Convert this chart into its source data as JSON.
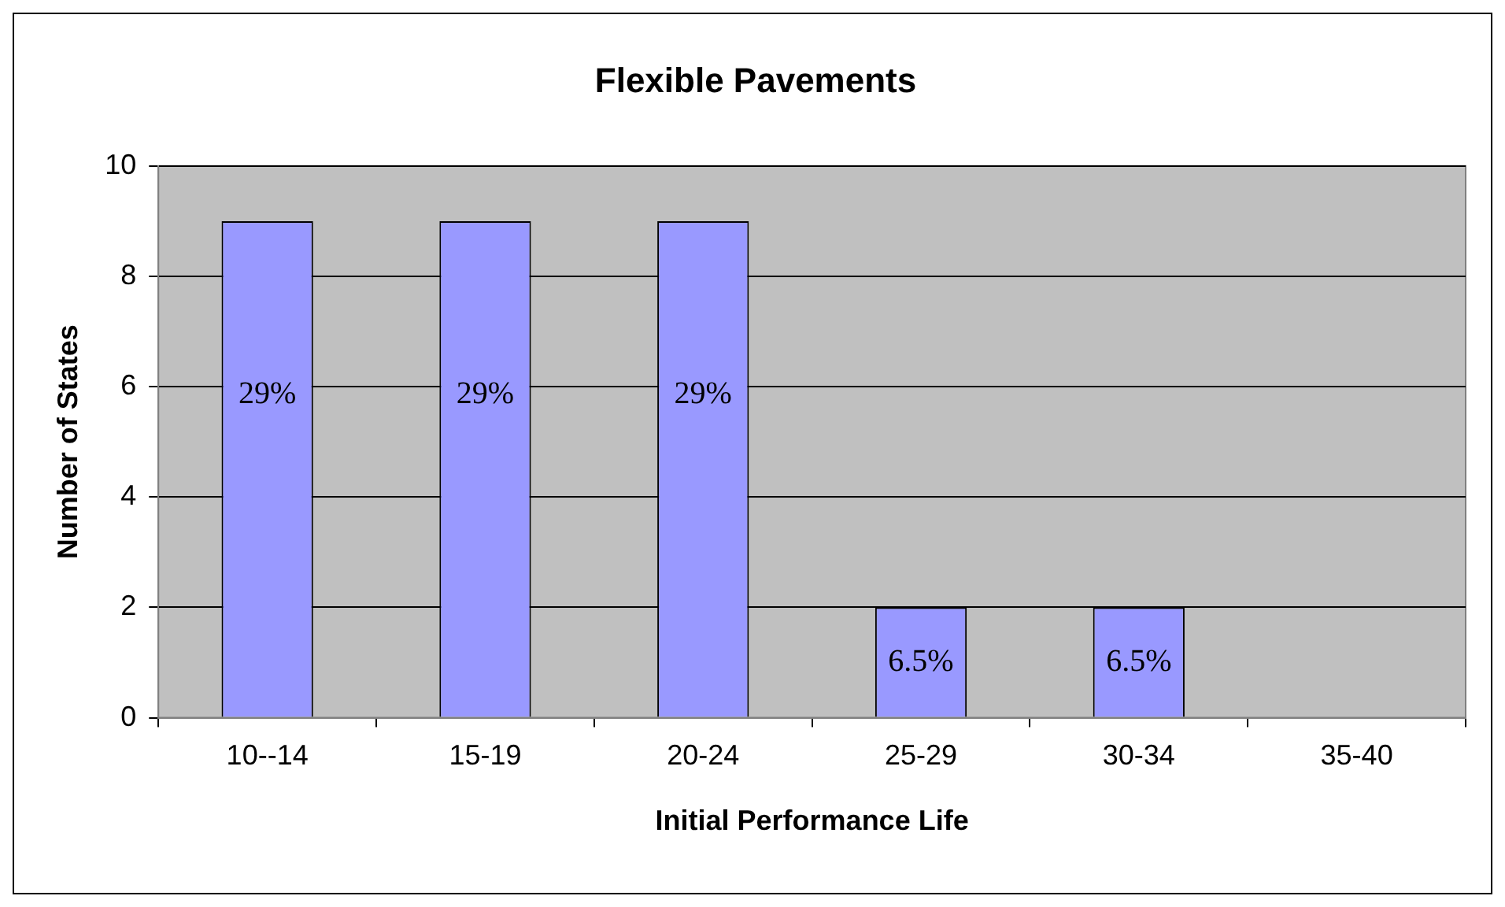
{
  "chart_data": {
    "type": "bar",
    "title": "Flexible Pavements",
    "xlabel": "Initial Performance Life",
    "ylabel": "Number of States",
    "categories": [
      "10--14",
      "15-19",
      "20-24",
      "25-29",
      "30-34",
      "35-40"
    ],
    "values": [
      9,
      9,
      9,
      2,
      2,
      0
    ],
    "annotations": [
      "29%",
      "29%",
      "29%",
      "6.5%",
      "6.5%"
    ],
    "color": "#9999ff",
    "ylim": [
      0,
      10
    ],
    "yticks": [
      0,
      2,
      4,
      6,
      8,
      10
    ],
    "grid": "y"
  }
}
